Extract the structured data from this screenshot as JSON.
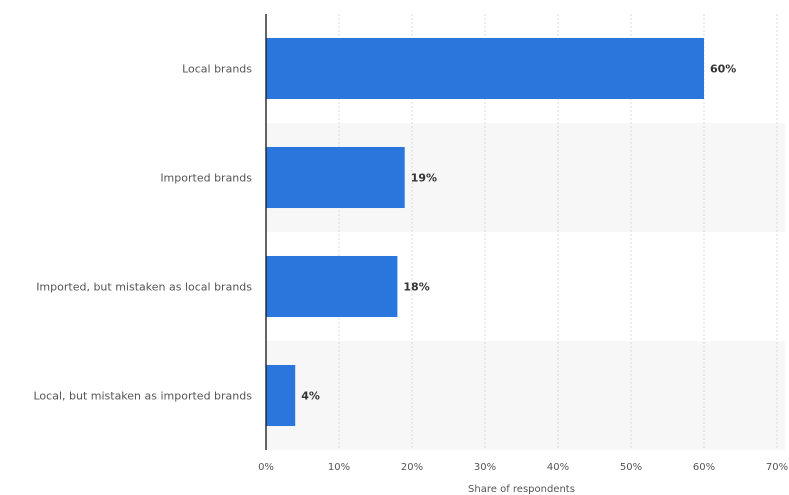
{
  "chart_data": {
    "type": "bar",
    "orientation": "horizontal",
    "title": "",
    "xlabel": "Share of respondents",
    "ylabel": "",
    "categories": [
      "Local brands",
      "Imported brands",
      "Imported, but mistaken as local brands",
      "Local, but mistaken as imported brands"
    ],
    "values": [
      60,
      19,
      18,
      4
    ],
    "data_labels": [
      "60%",
      "19%",
      "18%",
      "4%"
    ],
    "xlim": [
      0,
      70
    ],
    "x_ticks": [
      0,
      10,
      20,
      30,
      40,
      50,
      60,
      70
    ],
    "x_tick_labels": [
      "0%",
      "10%",
      "20%",
      "30%",
      "40%",
      "50%",
      "60%",
      "70%"
    ],
    "grid": true,
    "legend": "none",
    "bar_color": "#2a76dd",
    "band_color": "#f7f7f7"
  }
}
